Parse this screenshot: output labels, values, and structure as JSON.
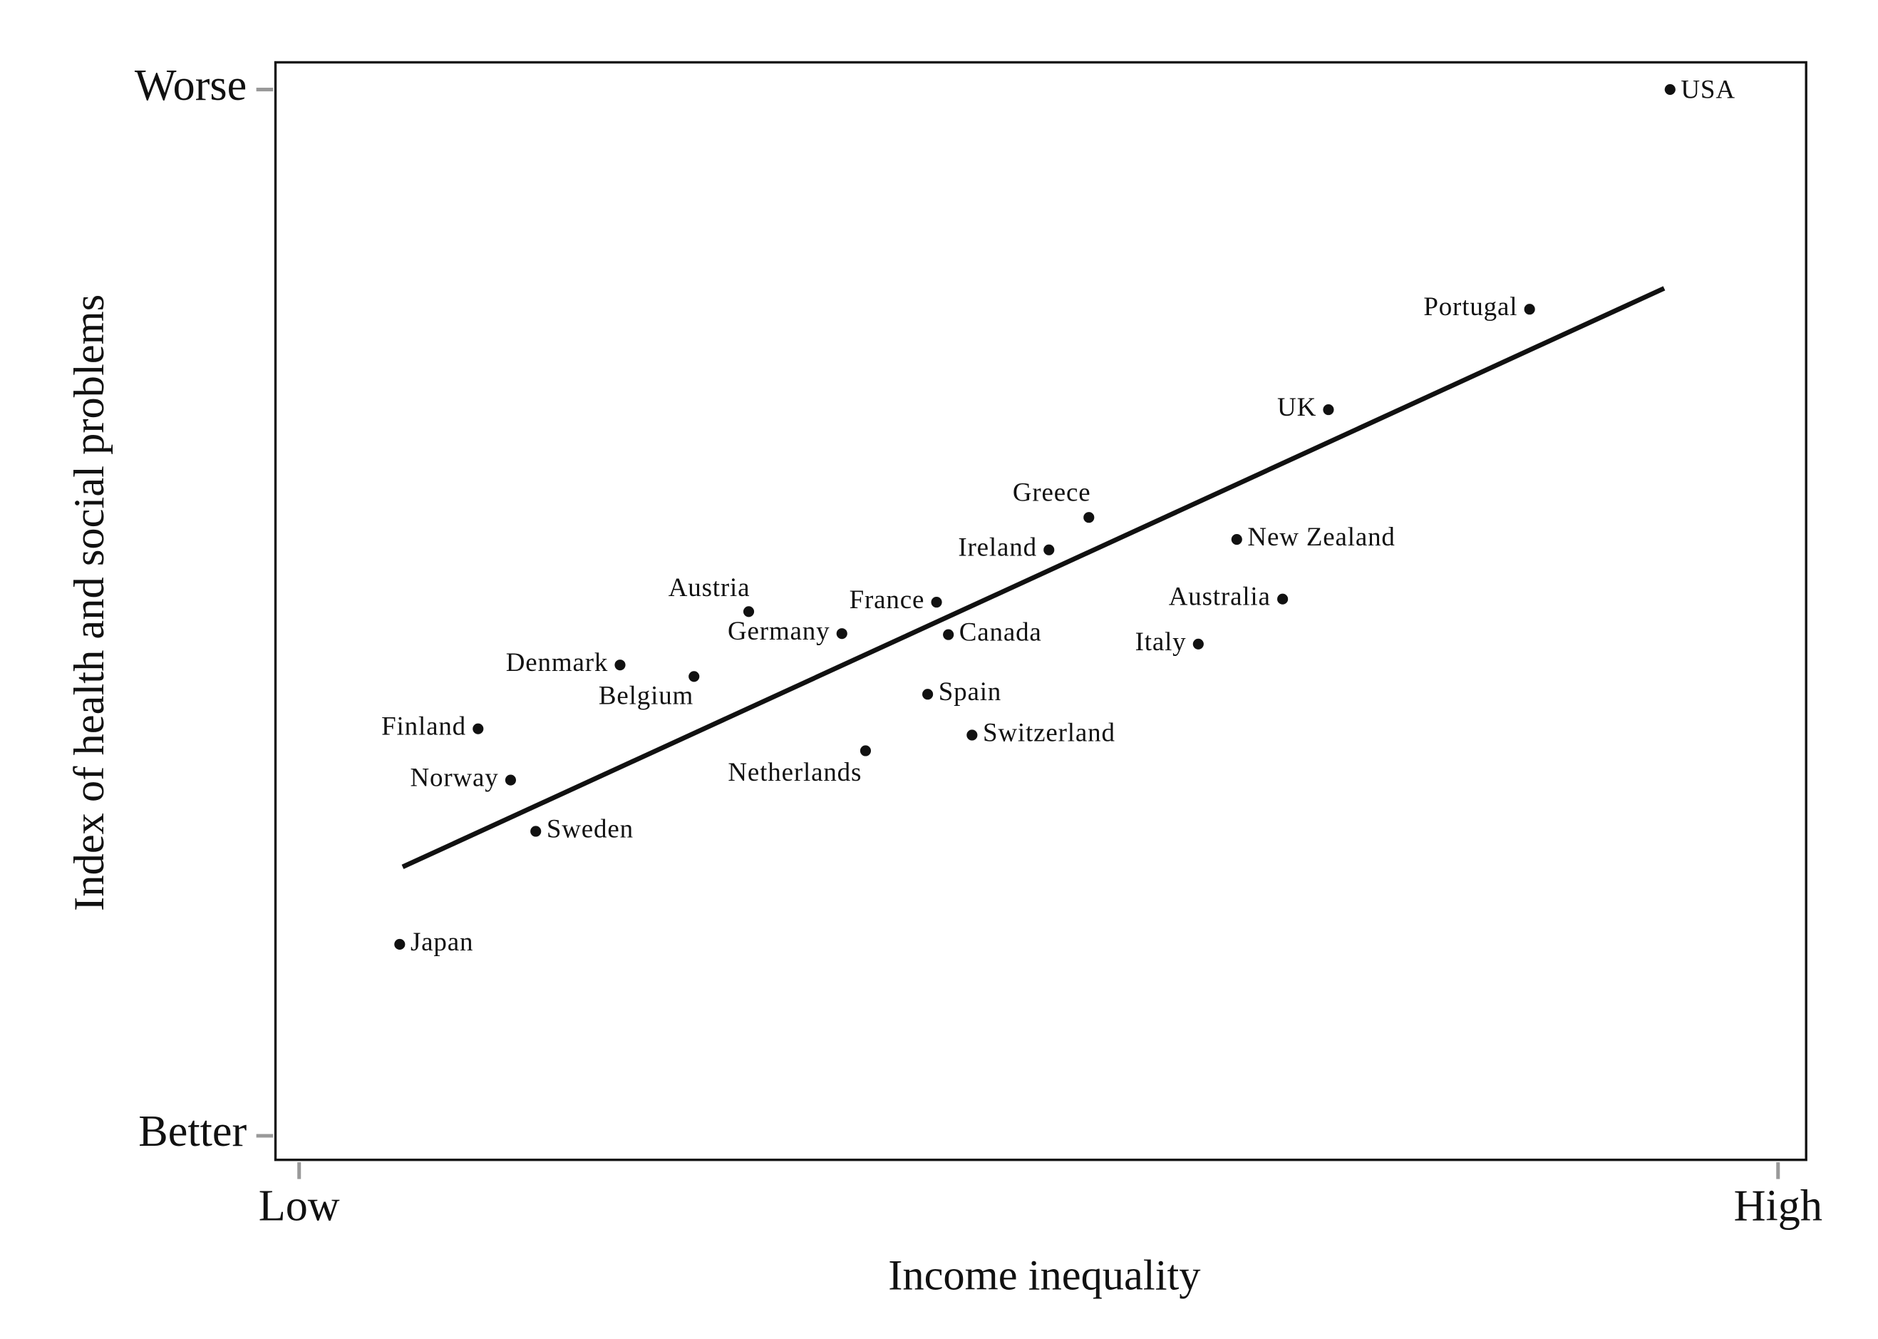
{
  "chart_data": {
    "type": "scatter",
    "x_label": "Income inequality",
    "y_label": "Index of health and social problems",
    "xlim": [
      -0.16,
      10.19
    ],
    "ylim": [
      -0.23,
      10.26
    ],
    "xticks": [
      {
        "value": 0,
        "label": "Low"
      },
      {
        "value": 10,
        "label": "High"
      }
    ],
    "yticks": [
      {
        "value": 0,
        "label": "Better"
      },
      {
        "value": 10,
        "label": "Worse"
      }
    ],
    "color": "#111111",
    "points": [
      {
        "label": "USA",
        "x": 9.27,
        "y": 10
      },
      {
        "label": "Portugal",
        "x": 8.32,
        "y": 7.9
      },
      {
        "label": "UK",
        "x": 6.96,
        "y": 6.94
      },
      {
        "label": "Greece",
        "x": 5.34,
        "y": 5.91
      },
      {
        "label": "Ireland",
        "x": 5.07,
        "y": 5.6
      },
      {
        "label": "New Zealand",
        "x": 6.34,
        "y": 5.7
      },
      {
        "label": "Australia",
        "x": 6.65,
        "y": 5.13
      },
      {
        "label": "Italy",
        "x": 6.08,
        "y": 4.7
      },
      {
        "label": "France",
        "x": 4.31,
        "y": 5.1
      },
      {
        "label": "Canada",
        "x": 4.39,
        "y": 4.79
      },
      {
        "label": "Austria",
        "x": 3.04,
        "y": 5.01
      },
      {
        "label": "Germany",
        "x": 3.67,
        "y": 4.8
      },
      {
        "label": "Denmark",
        "x": 2.17,
        "y": 4.5
      },
      {
        "label": "Belgium",
        "x": 2.67,
        "y": 4.39
      },
      {
        "label": "Spain",
        "x": 4.25,
        "y": 4.22
      },
      {
        "label": "Switzerland",
        "x": 4.55,
        "y": 3.83
      },
      {
        "label": "Netherlands",
        "x": 3.83,
        "y": 3.68
      },
      {
        "label": "Finland",
        "x": 1.21,
        "y": 3.89
      },
      {
        "label": "Norway",
        "x": 1.43,
        "y": 3.4
      },
      {
        "label": "Sweden",
        "x": 1.6,
        "y": 2.91
      },
      {
        "label": "Japan",
        "x": 0.68,
        "y": 1.83
      }
    ],
    "trend_line": {
      "x": [
        0.7,
        9.23
      ],
      "y": [
        2.57,
        8.1
      ]
    }
  }
}
